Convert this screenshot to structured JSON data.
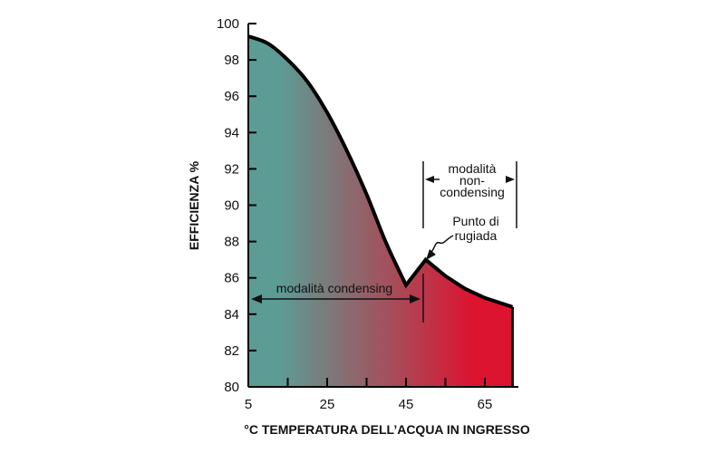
{
  "chart_data": {
    "type": "area",
    "title": "",
    "xlabel": "°C TEMPERATURA DELL’ACQUA IN INGRESSO",
    "ylabel": "EFFICIENZA %",
    "xlim": [
      5,
      75
    ],
    "ylim": [
      80,
      100
    ],
    "x_ticks": [
      5,
      25,
      45,
      65
    ],
    "y_ticks": [
      80,
      82,
      84,
      86,
      88,
      90,
      92,
      94,
      96,
      98,
      100
    ],
    "x_minor_ticks": [
      15,
      35,
      55
    ],
    "grid": false,
    "colors": {
      "fill_start": "#5c9c94",
      "fill_end": "#dc1430",
      "line": "#000000"
    },
    "series": [
      {
        "points": [
          [
            5,
            99.3
          ],
          [
            10,
            98.9
          ],
          [
            15,
            98.0
          ],
          [
            20,
            96.8
          ],
          [
            25,
            95.1
          ],
          [
            30,
            93.0
          ],
          [
            35,
            90.6
          ],
          [
            40,
            87.9
          ],
          [
            45,
            85.6
          ],
          [
            50,
            87.0
          ],
          [
            55,
            86.1
          ],
          [
            60,
            85.4
          ],
          [
            65,
            84.9
          ],
          [
            72,
            84.4
          ]
        ]
      }
    ],
    "annotations": {
      "condensing_label": "modalità condensing",
      "noncondensing_label": [
        "modalità",
        "non-",
        "condensing"
      ],
      "dewpoint_label": [
        "Punto di",
        "rugiada"
      ]
    }
  }
}
